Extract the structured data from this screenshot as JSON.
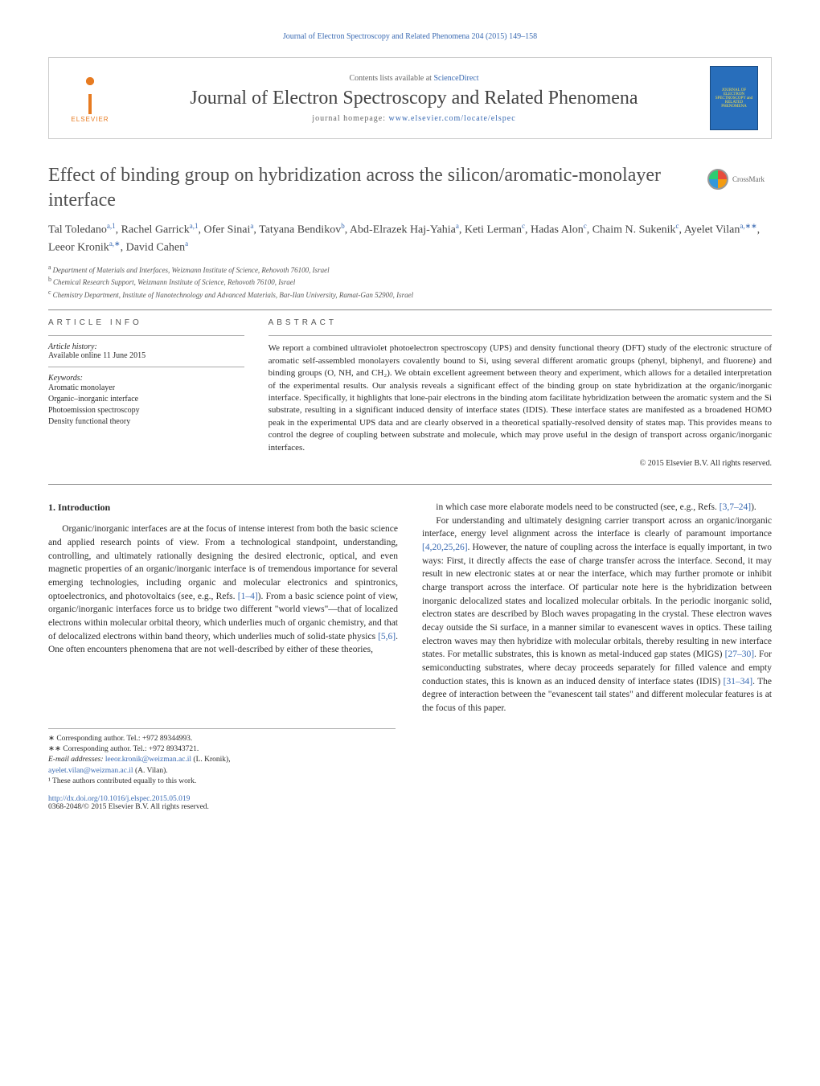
{
  "top_citation": "Journal of Electron Spectroscopy and Related Phenomena 204 (2015) 149–158",
  "header": {
    "elsevier_label": "ELSEVIER",
    "contents_prefix": "Contents lists available at",
    "contents_link": "ScienceDirect",
    "journal_name": "Journal of Electron Spectroscopy and Related Phenomena",
    "homepage_prefix": "journal homepage:",
    "homepage_url": "www.elsevier.com/locate/elspec",
    "cover_text": "JOURNAL OF ELECTRON SPECTROSCOPY and RELATED PHENOMENA"
  },
  "article": {
    "title": "Effect of binding group on hybridization across the silicon/aromatic-monolayer interface",
    "crossmark_label": "CrossMark",
    "authors_html": "Tal Toledano|a,1|, Rachel Garrick|a,1|, Ofer Sinai|a|, Tatyana Bendikov|b|, Abd-Elrazek Haj-Yahia|a|, Keti Lerman|c|, Hadas Alon|c|, Chaim N. Sukenik|c|, Ayelet Vilan|a,∗∗|, Leeor Kronik|a,∗|, David Cahen|a|",
    "affiliations": [
      {
        "sup": "a",
        "text": "Department of Materials and Interfaces, Weizmann Institute of Science, Rehovoth 76100, Israel"
      },
      {
        "sup": "b",
        "text": "Chemical Research Support, Weizmann Institute of Science, Rehovoth 76100, Israel"
      },
      {
        "sup": "c",
        "text": "Chemistry Department, Institute of Nanotechnology and Advanced Materials, Bar-Ilan University, Ramat-Gan 52900, Israel"
      }
    ]
  },
  "info": {
    "heading": "ARTICLE INFO",
    "history_label": "Article history:",
    "history_value": "Available online 11 June 2015",
    "keywords_label": "Keywords:",
    "keywords": [
      "Aromatic monolayer",
      "Organic–inorganic interface",
      "Photoemission spectroscopy",
      "Density functional theory"
    ]
  },
  "abstract": {
    "heading": "ABSTRACT",
    "text": "We report a combined ultraviolet photoelectron spectroscopy (UPS) and density functional theory (DFT) study of the electronic structure of aromatic self-assembled monolayers covalently bound to Si, using several different aromatic groups (phenyl, biphenyl, and fluorene) and binding groups (O, NH, and CH₂). We obtain excellent agreement between theory and experiment, which allows for a detailed interpretation of the experimental results. Our analysis reveals a significant effect of the binding group on state hybridization at the organic/inorganic interface. Specifically, it highlights that lone-pair electrons in the binding atom facilitate hybridization between the aromatic system and the Si substrate, resulting in a significant induced density of interface states (IDIS). These interface states are manifested as a broadened HOMO peak in the experimental UPS data and are clearly observed in a theoretical spatially-resolved density of states map. This provides means to control the degree of coupling between substrate and molecule, which may prove useful in the design of transport across organic/inorganic interfaces.",
    "copyright": "© 2015 Elsevier B.V. All rights reserved."
  },
  "body": {
    "section_heading": "1. Introduction",
    "left_paragraphs": [
      "Organic/inorganic interfaces are at the focus of intense interest from both the basic science and applied research points of view. From a technological standpoint, understanding, controlling, and ultimately rationally designing the desired electronic, optical, and even magnetic properties of an organic/inorganic interface is of tremendous importance for several emerging technologies, including organic and molecular electronics and spintronics, optoelectronics, and photovoltaics (see, e.g., Refs. [1–4]). From a basic science point of view, organic/inorganic interfaces force us to bridge two different \"world views\"—that of localized electrons within molecular orbital theory, which underlies much of organic chemistry, and that of delocalized electrons within band theory, which underlies much of solid-state physics [5,6]. One often encounters phenomena that are not well-described by either of these theories,"
    ],
    "right_paragraphs": [
      "in which case more elaborate models need to be constructed (see, e.g., Refs. [3,7–24]).",
      "For understanding and ultimately designing carrier transport across an organic/inorganic interface, energy level alignment across the interface is clearly of paramount importance [4,20,25,26]. However, the nature of coupling across the interface is equally important, in two ways: First, it directly affects the ease of charge transfer across the interface. Second, it may result in new electronic states at or near the interface, which may further promote or inhibit charge transport across the interface. Of particular note here is the hybridization between inorganic delocalized states and localized molecular orbitals. In the periodic inorganic solid, electron states are described by Bloch waves propagating in the crystal. These electron waves decay outside the Si surface, in a manner similar to evanescent waves in optics. These tailing electron waves may then hybridize with molecular orbitals, thereby resulting in new interface states. For metallic substrates, this is known as metal-induced gap states (MIGS) [27–30]. For semiconducting substrates, where decay proceeds separately for filled valence and empty conduction states, this is known as an induced density of interface states (IDIS) [31–34]. The degree of interaction between the \"evanescent tail states\" and different molecular features is at the focus of this paper."
    ],
    "refs": {
      "r1": "[1–4]",
      "r2": "[5,6]",
      "r3": "[3,7–24]",
      "r4": "[4,20,25,26]",
      "r5": "[27–30]",
      "r6": "[31–34]"
    }
  },
  "footnotes": {
    "star": "∗ Corresponding author. Tel.: +972 89344993.",
    "dstar": "∗∗ Corresponding author. Tel.: +972 89343721.",
    "email_label": "E-mail addresses:",
    "email1": "leeor.kronik@weizman.ac.il",
    "email1_name": "(L. Kronik),",
    "email2": "ayelet.vilan@weizman.ac.il",
    "email2_name": "(A. Vilan).",
    "note1": "¹ These authors contributed equally to this work."
  },
  "bottom": {
    "doi": "http://dx.doi.org/10.1016/j.elspec.2015.05.019",
    "issn_line": "0368-2048/© 2015 Elsevier B.V. All rights reserved."
  },
  "colors": {
    "link": "#3a6ab2",
    "elsevier": "#e77b21",
    "cover_bg": "#286ebb",
    "cover_text": "#f7e04a",
    "text": "#2b2b2b"
  },
  "typography": {
    "title_size_pt": 18,
    "journal_name_size_pt": 18,
    "body_size_pt": 9,
    "abstract_size_pt": 8.5,
    "affil_size_pt": 7
  }
}
